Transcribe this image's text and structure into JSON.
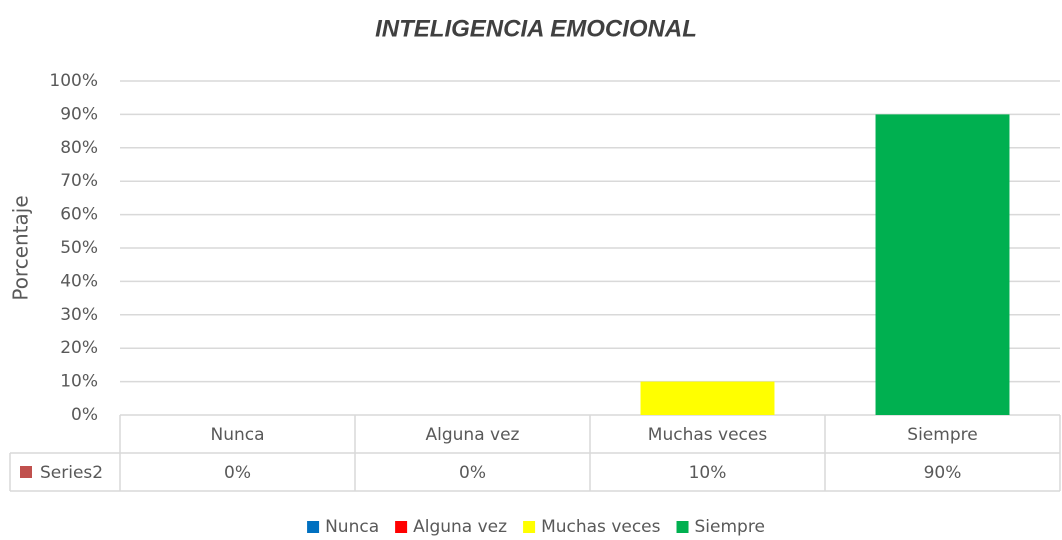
{
  "chart_data": {
    "type": "bar",
    "title": "INTELIGENCIA EMOCIONAL",
    "y_label": "Porcentaje",
    "categories": [
      "Nunca",
      "Alguna vez",
      "Muchas veces",
      "Siempre"
    ],
    "colors": [
      "#0070c0",
      "#ff0000",
      "#ffff00",
      "#00b050"
    ],
    "series": [
      {
        "name": "Series2",
        "color": "#c0504d",
        "values": [
          0,
          0,
          10,
          90
        ],
        "value_labels": [
          "0%",
          "0%",
          "10%",
          "90%"
        ]
      }
    ],
    "ylim": [
      0,
      100
    ],
    "yticks": [
      {
        "value": 0,
        "label": "0%"
      },
      {
        "value": 10,
        "label": "10%"
      },
      {
        "value": 20,
        "label": "20%"
      },
      {
        "value": 30,
        "label": "30%"
      },
      {
        "value": 40,
        "label": "40%"
      },
      {
        "value": 50,
        "label": "50%"
      },
      {
        "value": 60,
        "label": "60%"
      },
      {
        "value": 70,
        "label": "70%"
      },
      {
        "value": 80,
        "label": "80%"
      },
      {
        "value": 90,
        "label": "90%"
      },
      {
        "value": 100,
        "label": "100%"
      }
    ],
    "grid": true,
    "legend": "bottom"
  }
}
